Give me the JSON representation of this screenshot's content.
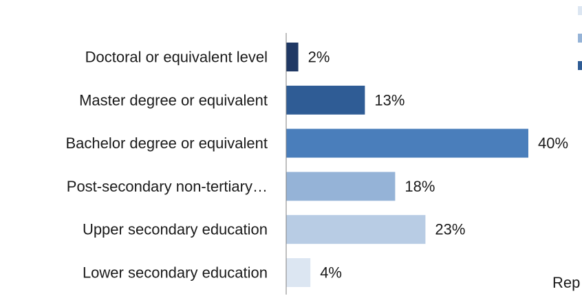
{
  "chart_data": {
    "type": "bar",
    "orientation": "horizontal",
    "categories": [
      "Doctoral or equivalent level",
      "Master degree or equivalent",
      "Bachelor degree or equivalent",
      "Post-secondary non-tertiary…",
      "Upper secondary education",
      "Lower secondary education"
    ],
    "values": [
      2,
      13,
      40,
      18,
      23,
      4
    ],
    "value_labels": [
      "2%",
      "13%",
      "40%",
      "18%",
      "23%",
      "4%"
    ],
    "unit": "%",
    "xlim": [
      0,
      45
    ],
    "grid": false,
    "colors": [
      "#1f3864",
      "#2f5c95",
      "#4a7ebb",
      "#95b3d7",
      "#b8cce4",
      "#dce6f2"
    ],
    "legend_swatch_colors": [
      "#dce6f2",
      "#95b3d7",
      "#2f5c95"
    ],
    "partial_text": "Rep"
  }
}
